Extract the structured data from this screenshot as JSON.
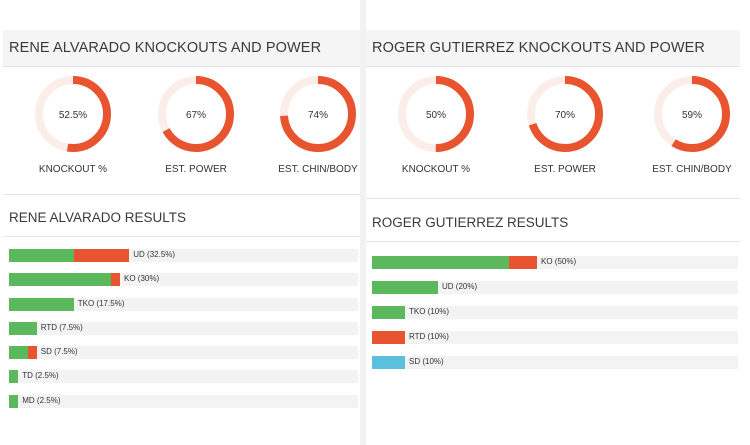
{
  "colors": {
    "green": "#5cb85c",
    "red": "#e8542f",
    "blue": "#5bc0de",
    "track": "#fbeee8"
  },
  "left": {
    "header_title": "RENE ALVARADO KNOCKOUTS AND POWER",
    "results_title": "RENE ALVARADO RESULTS",
    "donuts": [
      {
        "label": "KNOCKOUT %",
        "value_text": "52.5%",
        "value": 52.5
      },
      {
        "label": "EST. POWER",
        "value_text": "67%",
        "value": 67
      },
      {
        "label": "EST. CHIN/BODY",
        "value_text": "74%",
        "value": 74
      }
    ]
  },
  "right": {
    "header_title": "ROGER GUTIERREZ KNOCKOUTS AND POWER",
    "results_title": "ROGER GUTIERREZ RESULTS",
    "donuts": [
      {
        "label": "KNOCKOUT %",
        "value_text": "50%",
        "value": 50
      },
      {
        "label": "EST. POWER",
        "value_text": "70%",
        "value": 70
      },
      {
        "label": "EST. CHIN/BODY",
        "value_text": "59%",
        "value": 59
      }
    ]
  },
  "chart_data": [
    {
      "type": "bar",
      "title": "RENE ALVARADO RESULTS",
      "categories": [
        "UD",
        "KO",
        "TKO",
        "RTD",
        "SD",
        "TD",
        "MD"
      ],
      "labels": [
        "UD (32.5%)",
        "KO (30%)",
        "TKO (17.5%)",
        "RTD (7.5%)",
        "SD (7.5%)",
        "TD (2.5%)",
        "MD (2.5%)"
      ],
      "values": [
        32.5,
        30,
        17.5,
        7.5,
        7.5,
        2.5,
        2.5
      ],
      "green_part": [
        17.5,
        27.5,
        17.5,
        7.5,
        5,
        2.5,
        2.5
      ],
      "red_part": [
        15,
        2.5,
        0,
        0,
        2.5,
        0,
        0
      ],
      "ylim": [
        0,
        100
      ]
    },
    {
      "type": "bar",
      "title": "ROGER GUTIERREZ RESULTS",
      "categories": [
        "KO",
        "UD",
        "TKO",
        "RTD",
        "SD"
      ],
      "labels": [
        "KO (50%)",
        "UD (20%)",
        "TKO (10%)",
        "RTD (10%)",
        "SD (10%)"
      ],
      "values": [
        50,
        20,
        10,
        10,
        10
      ],
      "green_part": [
        41.5,
        20,
        10,
        0,
        0
      ],
      "red_part": [
        8.5,
        0,
        0,
        10,
        0
      ],
      "blue_part": [
        0,
        0,
        0,
        0,
        10
      ],
      "ylim": [
        0,
        100
      ]
    }
  ]
}
